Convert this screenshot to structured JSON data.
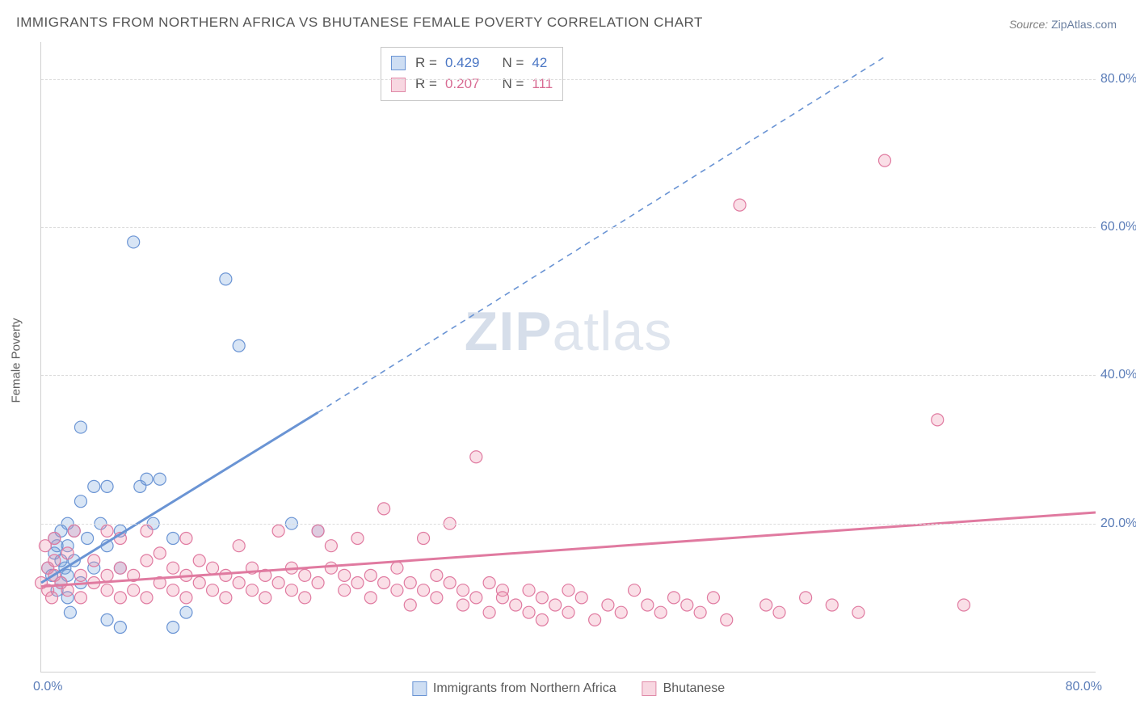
{
  "title": "IMMIGRANTS FROM NORTHERN AFRICA VS BHUTANESE FEMALE POVERTY CORRELATION CHART",
  "source_label": "Source:",
  "source_value": "ZipAtlas.com",
  "ylabel": "Female Poverty",
  "watermark_a": "ZIP",
  "watermark_b": "atlas",
  "chart": {
    "type": "scatter",
    "xlim": [
      0,
      80
    ],
    "ylim": [
      0,
      85
    ],
    "yticks": [
      20,
      40,
      60,
      80
    ],
    "ytick_labels": [
      "20.0%",
      "40.0%",
      "60.0%",
      "80.0%"
    ],
    "xtick_left": "0.0%",
    "xtick_right": "80.0%",
    "background_color": "#ffffff",
    "grid_color": "#dcdcdc",
    "marker_radius": 7.5,
    "marker_fill_opacity": 0.25,
    "marker_stroke_width": 1.2,
    "series": [
      {
        "name": "Immigrants from Northern Africa",
        "color": "#6a94d4",
        "fill": "rgba(114,160,220,0.28)",
        "R": "0.429",
        "N": "42",
        "regression": {
          "x1": 0,
          "y1": 12,
          "x2": 21,
          "y2": 35,
          "dash_x2": 64,
          "dash_y2": 83
        },
        "line_width": 3,
        "points": [
          [
            0.5,
            14
          ],
          [
            0.8,
            13
          ],
          [
            1,
            16
          ],
          [
            1,
            18
          ],
          [
            1.2,
            11
          ],
          [
            1.2,
            17
          ],
          [
            1.5,
            12
          ],
          [
            1.5,
            15
          ],
          [
            1.5,
            19
          ],
          [
            1.8,
            14
          ],
          [
            2,
            10
          ],
          [
            2,
            13
          ],
          [
            2,
            17
          ],
          [
            2,
            20
          ],
          [
            2.2,
            8
          ],
          [
            2.5,
            15
          ],
          [
            2.5,
            19
          ],
          [
            3,
            12
          ],
          [
            3,
            23
          ],
          [
            3,
            33
          ],
          [
            3.5,
            18
          ],
          [
            4,
            25
          ],
          [
            4,
            14
          ],
          [
            4.5,
            20
          ],
          [
            5,
            17
          ],
          [
            5,
            25
          ],
          [
            6,
            19
          ],
          [
            6,
            14
          ],
          [
            7,
            58
          ],
          [
            7.5,
            25
          ],
          [
            8,
            26
          ],
          [
            8.5,
            20
          ],
          [
            9,
            26
          ],
          [
            10,
            18
          ],
          [
            10,
            6
          ],
          [
            11,
            8
          ],
          [
            14,
            53
          ],
          [
            15,
            44
          ],
          [
            19,
            20
          ],
          [
            21,
            19
          ],
          [
            5,
            7
          ],
          [
            6,
            6
          ]
        ]
      },
      {
        "name": "Bhutanese",
        "color": "#e07aa0",
        "fill": "rgba(236,140,170,0.28)",
        "R": "0.207",
        "N": "111",
        "regression": {
          "x1": 0,
          "y1": 11.5,
          "x2": 80,
          "y2": 21.5
        },
        "line_width": 3,
        "points": [
          [
            0,
            12
          ],
          [
            0.3,
            17
          ],
          [
            0.5,
            11
          ],
          [
            0.5,
            14
          ],
          [
            0.8,
            10
          ],
          [
            1,
            13
          ],
          [
            1,
            15
          ],
          [
            1,
            18
          ],
          [
            1.5,
            12
          ],
          [
            2,
            11
          ],
          [
            2,
            16
          ],
          [
            2.5,
            19
          ],
          [
            3,
            10
          ],
          [
            3,
            13
          ],
          [
            4,
            12
          ],
          [
            4,
            15
          ],
          [
            5,
            11
          ],
          [
            5,
            13
          ],
          [
            5,
            19
          ],
          [
            6,
            10
          ],
          [
            6,
            14
          ],
          [
            6,
            18
          ],
          [
            7,
            11
          ],
          [
            7,
            13
          ],
          [
            8,
            10
          ],
          [
            8,
            15
          ],
          [
            8,
            19
          ],
          [
            9,
            12
          ],
          [
            9,
            16
          ],
          [
            10,
            11
          ],
          [
            10,
            14
          ],
          [
            11,
            10
          ],
          [
            11,
            13
          ],
          [
            11,
            18
          ],
          [
            12,
            12
          ],
          [
            12,
            15
          ],
          [
            13,
            11
          ],
          [
            13,
            14
          ],
          [
            14,
            10
          ],
          [
            14,
            13
          ],
          [
            15,
            12
          ],
          [
            15,
            17
          ],
          [
            16,
            11
          ],
          [
            16,
            14
          ],
          [
            17,
            10
          ],
          [
            17,
            13
          ],
          [
            18,
            12
          ],
          [
            18,
            19
          ],
          [
            19,
            11
          ],
          [
            19,
            14
          ],
          [
            20,
            10
          ],
          [
            20,
            13
          ],
          [
            21,
            12
          ],
          [
            21,
            19
          ],
          [
            22,
            14
          ],
          [
            22,
            17
          ],
          [
            23,
            11
          ],
          [
            23,
            13
          ],
          [
            24,
            12
          ],
          [
            24,
            18
          ],
          [
            25,
            10
          ],
          [
            25,
            13
          ],
          [
            26,
            22
          ],
          [
            26,
            12
          ],
          [
            27,
            11
          ],
          [
            27,
            14
          ],
          [
            28,
            9
          ],
          [
            28,
            12
          ],
          [
            29,
            11
          ],
          [
            29,
            18
          ],
          [
            30,
            10
          ],
          [
            30,
            13
          ],
          [
            31,
            12
          ],
          [
            31,
            20
          ],
          [
            32,
            9
          ],
          [
            32,
            11
          ],
          [
            33,
            10
          ],
          [
            33,
            29
          ],
          [
            34,
            8
          ],
          [
            34,
            12
          ],
          [
            35,
            11
          ],
          [
            35,
            10
          ],
          [
            36,
            9
          ],
          [
            37,
            11
          ],
          [
            37,
            8
          ],
          [
            38,
            10
          ],
          [
            38,
            7
          ],
          [
            39,
            9
          ],
          [
            40,
            11
          ],
          [
            40,
            8
          ],
          [
            41,
            10
          ],
          [
            42,
            7
          ],
          [
            43,
            9
          ],
          [
            44,
            8
          ],
          [
            45,
            11
          ],
          [
            46,
            9
          ],
          [
            47,
            8
          ],
          [
            48,
            10
          ],
          [
            49,
            9
          ],
          [
            50,
            8
          ],
          [
            51,
            10
          ],
          [
            52,
            7
          ],
          [
            53,
            63
          ],
          [
            55,
            9
          ],
          [
            56,
            8
          ],
          [
            58,
            10
          ],
          [
            60,
            9
          ],
          [
            64,
            69
          ],
          [
            68,
            34
          ],
          [
            70,
            9
          ],
          [
            62,
            8
          ]
        ]
      }
    ]
  },
  "legend": {
    "series1_label": "Immigrants from Northern Africa",
    "series2_label": "Bhutanese"
  }
}
